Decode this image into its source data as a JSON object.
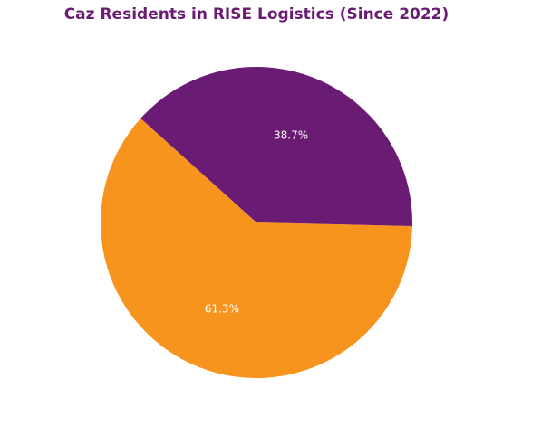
{
  "chart_data": {
    "type": "pie",
    "title": "Caz Residents in RISE Logistics (Since 2022)",
    "slices": [
      {
        "value": 61.3,
        "label": "61.3%",
        "color": "#f7941e"
      },
      {
        "value": 38.7,
        "label": "38.7%",
        "color": "#6a1b74"
      }
    ],
    "legend": "none"
  }
}
